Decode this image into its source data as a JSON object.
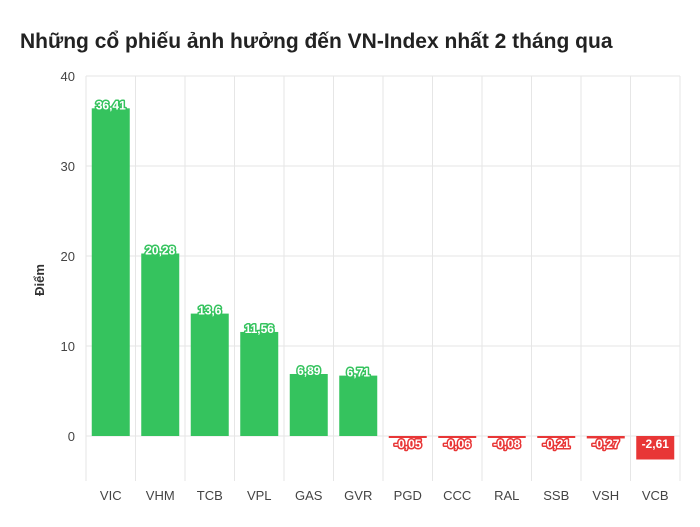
{
  "title": "Những cổ phiếu ảnh hưởng đến VN-Index nhất 2 tháng qua",
  "colors": {
    "positive": "#35c35e",
    "negative": "#e83636",
    "grid": "#e6e6e6"
  },
  "chart_data": {
    "type": "bar",
    "title": "Những cổ phiếu ảnh hưởng đến VN-Index nhất 2 tháng qua",
    "xlabel": "",
    "ylabel": "Điểm",
    "categories": [
      "VIC",
      "VHM",
      "TCB",
      "VPL",
      "GAS",
      "GVR",
      "PGD",
      "CCC",
      "RAL",
      "SSB",
      "VSH",
      "VCB"
    ],
    "values": [
      36.41,
      20.28,
      13.6,
      11.56,
      6.89,
      6.71,
      -0.05,
      -0.06,
      -0.08,
      -0.21,
      -0.27,
      -2.61
    ],
    "data_labels": [
      "36,41",
      "20,28",
      "13,6",
      "11,56",
      "6,89",
      "6,71",
      "-0,05",
      "-0,06",
      "-0,08",
      "-0,21",
      "-0,27",
      "-2,61"
    ],
    "ylim": [
      -5,
      40
    ],
    "yticks": [
      0,
      10,
      20,
      30,
      40
    ],
    "grid": true,
    "legend": "none"
  }
}
